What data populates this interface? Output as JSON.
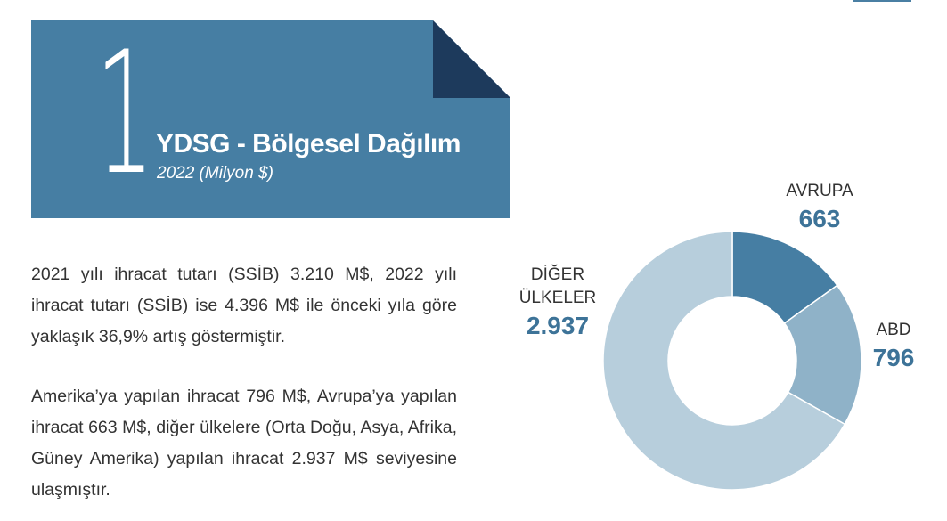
{
  "header": {
    "number": "1",
    "title": "YDSG - Bölgesel Dağılım",
    "subtitle": "2022 (Milyon $)"
  },
  "text": {
    "paragraph1": "2021 yılı ihracat tutarı (SSİB) 3.210 M$, 2022 yılı ihracat tutarı (SSİB) ise 4.396 M$ ile önceki yıla göre yaklaşık 36,9% artış göstermiştir.",
    "paragraph2": "Amerika’ya yapılan ihracat 796 M$, Avrupa’ya yapılan ihracat 663 M$, diğer ülkelere (Orta Doğu, Asya, Afrika, Güney Amerika) yapılan ihracat 2.937 M$ seviyesine ulaşmıştır."
  },
  "colors": {
    "banner": "#467ea3",
    "banner_fold": "#1d3a5c",
    "avrupa": "#467ea3",
    "abd": "#8fb2c8",
    "diger": "#b7cedc"
  },
  "chart_data": {
    "type": "pie",
    "donut": true,
    "slices": [
      {
        "name": "AVRUPA",
        "value": 663,
        "label": "663"
      },
      {
        "name": "ABD",
        "value": 796,
        "label": "796"
      },
      {
        "name_lines": [
          "DİĞER",
          "ÜLKELER"
        ],
        "value": 2937,
        "label": "2.937"
      }
    ]
  }
}
